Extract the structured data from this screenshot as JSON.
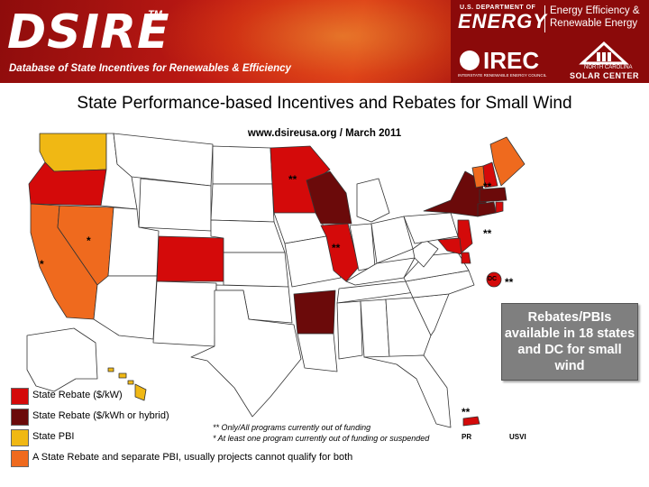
{
  "header": {
    "logo": "DSIRE",
    "trademark": "TM",
    "tagline": "Database of State Incentives for Renewables & Efficiency",
    "doe_top": "U.S. DEPARTMENT OF",
    "doe_energy": "ENERGY",
    "doe_program": "Energy Efficiency & Renewable Energy",
    "irec": "IREC",
    "irec_sub": "INTERSTATE RENEWABLE ENERGY COUNCIL",
    "ncsc_line1": "NORTH CAROLINA",
    "ncsc_line2": "SOLAR CENTER"
  },
  "title": "State Performance-based Incentives and Rebates for Small Wind",
  "subtitle": "www.dsireusa.org / March 2011",
  "callout": "Rebates/PBIs available in 18 states and DC for small wind",
  "colors": {
    "rebate_kw": "#d40a0a",
    "rebate_kwh": "#6b0a0a",
    "pbi": "#f0b814",
    "rebate_and_pbi": "#ef6a1e",
    "no_program": "#ffffff"
  },
  "legend": [
    {
      "label": "State Rebate ($/kW)",
      "color": "#d40a0a"
    },
    {
      "label": "State Rebate ($/kWh or hybrid)",
      "color": "#6b0a0a"
    },
    {
      "label": "State PBI",
      "color": "#f0b814"
    },
    {
      "label": "A State Rebate and separate PBI, usually projects cannot qualify for both",
      "color": "#ef6a1e"
    }
  ],
  "footnotes": {
    "double_star": "** Only/All programs currently out of funding",
    "single_star": "* At least one program currently out of funding or suspended"
  },
  "markers": {
    "single": "*",
    "double": "**"
  },
  "territories": {
    "dc": "DC",
    "pr": "PR",
    "usvi": "USVI"
  }
}
